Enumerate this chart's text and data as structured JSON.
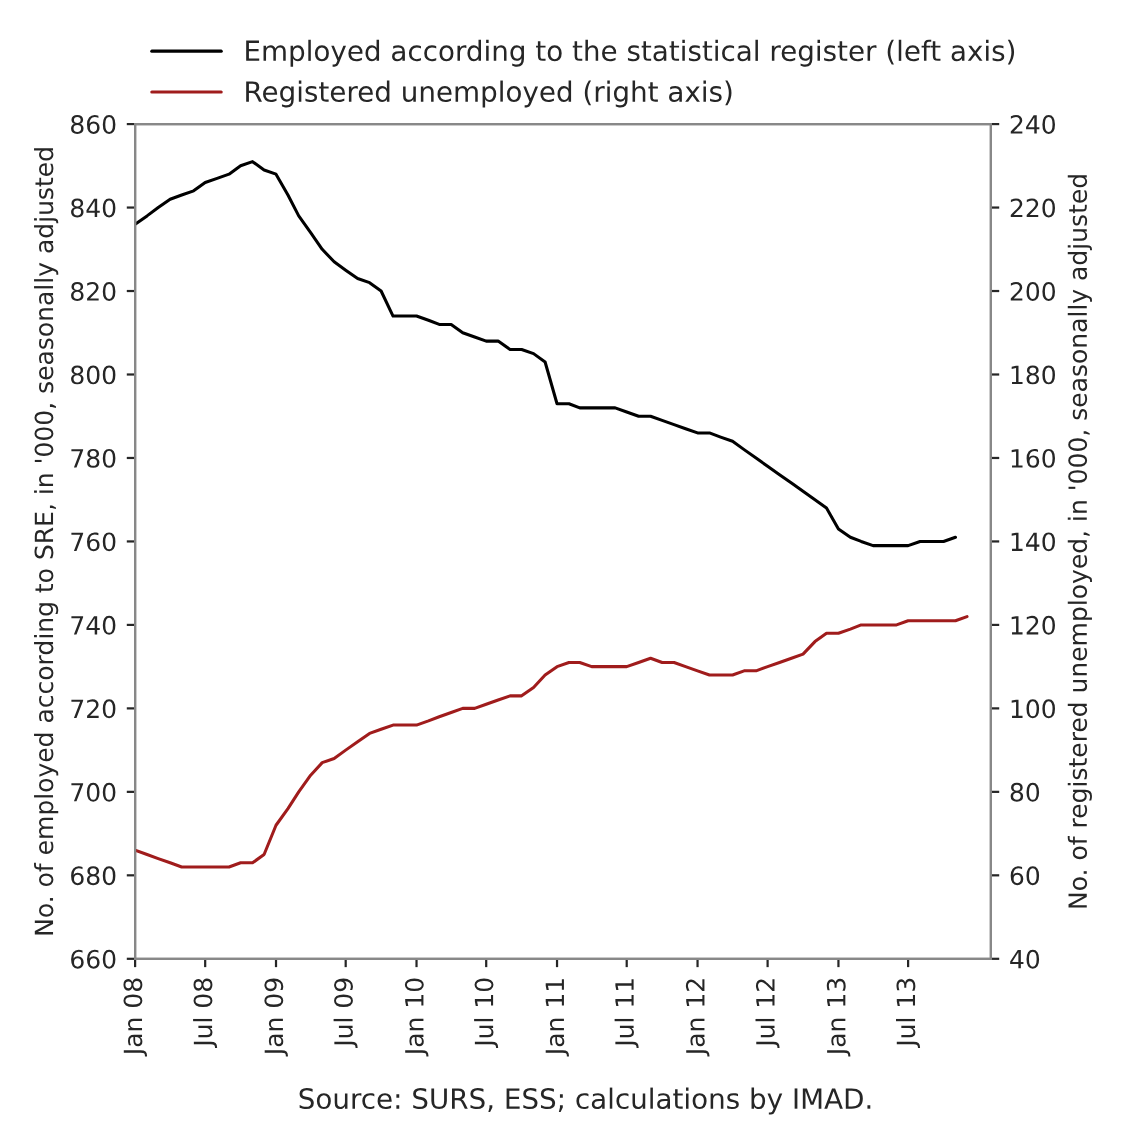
{
  "chart_data": {
    "type": "line",
    "ylabel": "No. of employed according to SRE, in '000, seasonally adjusted",
    "y2label": "No. of registered unemployed, in '000, seasonally adjusted",
    "annotations": [
      "Source: SURS, ESS; calculations by IMAD."
    ],
    "xlim": [
      "2008-01",
      "2014-02"
    ],
    "xticks": [
      {
        "value": "2008-01",
        "label": "Jan 08"
      },
      {
        "value": "2008-07",
        "label": "Jul 08"
      },
      {
        "value": "2009-01",
        "label": "Jan 09"
      },
      {
        "value": "2009-07",
        "label": "Jul 09"
      },
      {
        "value": "2010-01",
        "label": "Jan 10"
      },
      {
        "value": "2010-07",
        "label": "Jul 10"
      },
      {
        "value": "2011-01",
        "label": "Jan 11"
      },
      {
        "value": "2011-07",
        "label": "Jul 11"
      },
      {
        "value": "2012-01",
        "label": "Jan 12"
      },
      {
        "value": "2012-07",
        "label": "Jul 12"
      },
      {
        "value": "2013-01",
        "label": "Jan 13"
      },
      {
        "value": "2013-07",
        "label": "Jul 13"
      }
    ],
    "ylim": [
      660,
      860
    ],
    "yticks": [
      660,
      680,
      700,
      720,
      740,
      760,
      780,
      800,
      820,
      840,
      860
    ],
    "y2lim": [
      40,
      240
    ],
    "y2ticks": [
      40,
      60,
      80,
      100,
      120,
      140,
      160,
      180,
      200,
      220,
      240
    ],
    "legend": "top",
    "grid": false,
    "marker": "none",
    "line_style": "solid",
    "series": [
      {
        "name": "Employed according to the statistical register (left axis)",
        "color": "#000000",
        "x": [
          "2008-01",
          "2008-02",
          "2008-03",
          "2008-04",
          "2008-05",
          "2008-06",
          "2008-07",
          "2008-08",
          "2008-09",
          "2008-10",
          "2008-11",
          "2008-12",
          "2009-01",
          "2009-02",
          "2009-03",
          "2009-04",
          "2009-05",
          "2009-06",
          "2009-07",
          "2009-08",
          "2009-09",
          "2009-10",
          "2009-11",
          "2009-12",
          "2010-01",
          "2010-02",
          "2010-03",
          "2010-04",
          "2010-05",
          "2010-06",
          "2010-07",
          "2010-08",
          "2010-09",
          "2010-10",
          "2010-11",
          "2010-12",
          "2011-01",
          "2011-02",
          "2011-03",
          "2011-04",
          "2011-05",
          "2011-06",
          "2011-07",
          "2011-08",
          "2011-09",
          "2011-10",
          "2011-11",
          "2011-12",
          "2012-01",
          "2012-02",
          "2012-03",
          "2012-04",
          "2012-05",
          "2012-06",
          "2012-07",
          "2012-08",
          "2012-09",
          "2012-10",
          "2012-11",
          "2012-12",
          "2013-01",
          "2013-02",
          "2013-03",
          "2013-04",
          "2013-05",
          "2013-06",
          "2013-07",
          "2013-08",
          "2013-09",
          "2013-10",
          "2013-11"
        ],
        "values": [
          836,
          838,
          840,
          842,
          843,
          844,
          846,
          847,
          848,
          850,
          851,
          849,
          848,
          843,
          838,
          834,
          830,
          827,
          825,
          823,
          822,
          820,
          814,
          814,
          814,
          813,
          812,
          812,
          810,
          809,
          808,
          808,
          806,
          806,
          805,
          803,
          793,
          793,
          792,
          792,
          792,
          792,
          791,
          790,
          790,
          789,
          788,
          787,
          786,
          786,
          785,
          784,
          782,
          780,
          778,
          776,
          774,
          772,
          770,
          768,
          763,
          761,
          760,
          759,
          759,
          759,
          759,
          760,
          760,
          760,
          761
        ]
      },
      {
        "name": "Registered unemployed (right axis)",
        "color": "#a01c1c",
        "axis": "y2",
        "x": [
          "2008-01",
          "2008-02",
          "2008-03",
          "2008-04",
          "2008-05",
          "2008-06",
          "2008-07",
          "2008-08",
          "2008-09",
          "2008-10",
          "2008-11",
          "2008-12",
          "2009-01",
          "2009-02",
          "2009-03",
          "2009-04",
          "2009-05",
          "2009-06",
          "2009-07",
          "2009-08",
          "2009-09",
          "2009-10",
          "2009-11",
          "2009-12",
          "2010-01",
          "2010-02",
          "2010-03",
          "2010-04",
          "2010-05",
          "2010-06",
          "2010-07",
          "2010-08",
          "2010-09",
          "2010-10",
          "2010-11",
          "2010-12",
          "2011-01",
          "2011-02",
          "2011-03",
          "2011-04",
          "2011-05",
          "2011-06",
          "2011-07",
          "2011-08",
          "2011-09",
          "2011-10",
          "2011-11",
          "2011-12",
          "2012-01",
          "2012-02",
          "2012-03",
          "2012-04",
          "2012-05",
          "2012-06",
          "2012-07",
          "2012-08",
          "2012-09",
          "2012-10",
          "2012-11",
          "2012-12",
          "2013-01",
          "2013-02",
          "2013-03",
          "2013-04",
          "2013-05",
          "2013-06",
          "2013-07",
          "2013-08",
          "2013-09",
          "2013-10",
          "2013-11",
          "2013-12"
        ],
        "values": [
          66,
          65,
          64,
          63,
          62,
          62,
          62,
          62,
          62,
          63,
          63,
          65,
          72,
          76,
          80,
          84,
          87,
          88,
          90,
          92,
          94,
          95,
          96,
          96,
          96,
          97,
          98,
          99,
          100,
          100,
          101,
          102,
          103,
          103,
          105,
          108,
          110,
          111,
          111,
          110,
          110,
          110,
          110,
          111,
          112,
          111,
          111,
          110,
          109,
          108,
          108,
          108,
          109,
          109,
          110,
          111,
          112,
          113,
          116,
          118,
          118,
          119,
          120,
          120,
          120,
          120,
          121,
          121,
          121,
          121,
          121,
          122
        ]
      }
    ]
  }
}
